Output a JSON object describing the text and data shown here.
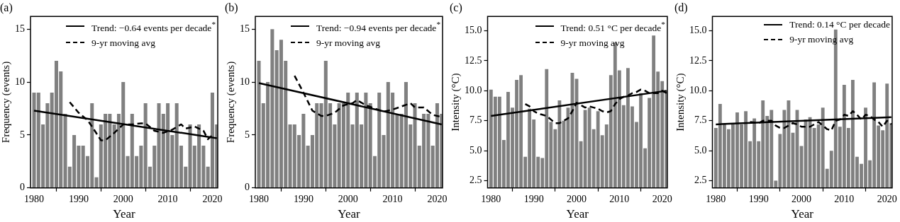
{
  "chart_data": [
    {
      "type": "bar",
      "title": "(a)",
      "xlabel": "Year",
      "ylabel": "Frequency (events)",
      "legend": "top right",
      "marker": "none",
      "xlim": [
        1979.2,
        2021.2
      ],
      "xticks": [
        1980,
        1990,
        2000,
        2010,
        2020
      ],
      "ylim": [
        0,
        16.2
      ],
      "yticks": [
        0,
        5,
        10,
        15
      ],
      "x": [
        1980,
        1981,
        1982,
        1983,
        1984,
        1985,
        1986,
        1987,
        1988,
        1989,
        1990,
        1991,
        1992,
        1993,
        1994,
        1995,
        1996,
        1997,
        1998,
        1999,
        2000,
        2001,
        2002,
        2003,
        2004,
        2005,
        2006,
        2007,
        2008,
        2009,
        2010,
        2011,
        2012,
        2013,
        2014,
        2015,
        2016,
        2017,
        2018,
        2019,
        2020,
        2021
      ],
      "series": [
        {
          "color": "#808080",
          "values": [
            9,
            9,
            6,
            8,
            9,
            12,
            11,
            7,
            2,
            5,
            4,
            4,
            3,
            8,
            1,
            6,
            7,
            7,
            6,
            7,
            10,
            3,
            7,
            3,
            4,
            8,
            2,
            4,
            8,
            7,
            8,
            5,
            8,
            4,
            2,
            6,
            4,
            6,
            4,
            2,
            9,
            6
          ]
        },
        {
          "type": "line",
          "name": "Trend: −0.64 events per decade$^{*}$",
          "color": "#000000",
          "line_style": "solid",
          "x": [
            1980,
            2021
          ],
          "values": [
            7.3,
            4.7
          ]
        },
        {
          "type": "line",
          "name": "9-yr moving avg",
          "color": "#000000",
          "line_style": "dashed",
          "x": [
            1988,
            1990,
            1992,
            1993,
            1995,
            1996,
            1998,
            2000,
            2002,
            2004,
            2005,
            2007,
            2009,
            2011,
            2013,
            2014,
            2016,
            2018,
            2019,
            2020
          ],
          "values": [
            8.1,
            7.1,
            6.4,
            5.8,
            4.5,
            4.5,
            5.2,
            6.0,
            6.0,
            6.1,
            6.1,
            5.4,
            5.2,
            5.5,
            6.0,
            5.6,
            5.8,
            5.4,
            4.6,
            5.0
          ]
        }
      ]
    },
    {
      "type": "bar",
      "title": "(b)",
      "xlabel": "Year",
      "ylabel": "Frequency (events)",
      "legend": "top right",
      "marker": "none",
      "xlim": [
        1979.2,
        2021.2
      ],
      "xticks": [
        1980,
        1990,
        2000,
        2010,
        2020
      ],
      "ylim": [
        0,
        16.2
      ],
      "yticks": [
        0,
        5,
        10,
        15
      ],
      "x": [
        1980,
        1981,
        1982,
        1983,
        1984,
        1985,
        1986,
        1987,
        1988,
        1989,
        1990,
        1991,
        1992,
        1993,
        1994,
        1995,
        1996,
        1997,
        1998,
        1999,
        2000,
        2001,
        2002,
        2003,
        2004,
        2005,
        2006,
        2007,
        2008,
        2009,
        2010,
        2011,
        2012,
        2013,
        2014,
        2015,
        2016,
        2017,
        2018,
        2019,
        2020,
        2021
      ],
      "series": [
        {
          "color": "#808080",
          "values": [
            12,
            8,
            10,
            15,
            13,
            14,
            12,
            6,
            6,
            5,
            7,
            4,
            5,
            8,
            8,
            12,
            8,
            6,
            8,
            8,
            9,
            6,
            9,
            6,
            9,
            8,
            3,
            9,
            5,
            10,
            9,
            7,
            7,
            10,
            6,
            8,
            4,
            7,
            7,
            4,
            8,
            7
          ]
        },
        {
          "type": "line",
          "name": "Trend: −0.94 events per decade$^{*}$",
          "color": "#000000",
          "line_style": "solid",
          "x": [
            1980,
            2021
          ],
          "values": [
            9.9,
            6.0
          ]
        },
        {
          "type": "line",
          "name": "9-yr moving avg",
          "color": "#000000",
          "line_style": "dashed",
          "x": [
            1988,
            1990,
            1992,
            1994,
            1995,
            1997,
            1999,
            2001,
            2002,
            2004,
            2006,
            2008,
            2010,
            2012,
            2014,
            2015,
            2017,
            2019,
            2021
          ],
          "values": [
            10.6,
            9.0,
            7.3,
            6.8,
            6.8,
            7.1,
            7.8,
            8.0,
            8.3,
            7.8,
            7.5,
            7.2,
            7.4,
            7.7,
            8.0,
            7.6,
            7.6,
            6.9,
            6.7
          ]
        }
      ]
    },
    {
      "type": "bar",
      "title": "(c)",
      "xlabel": "Year",
      "ylabel": "Intensity (°C)",
      "legend": "top right",
      "marker": "none",
      "xlim": [
        1979.2,
        2021.2
      ],
      "xticks": [
        1980,
        1990,
        2000,
        2010,
        2020
      ],
      "ylim": [
        1.9,
        16.2
      ],
      "yticks": [
        2.5,
        {
          "value": 5,
          "label": "5.0"
        },
        7.5,
        {
          "value": 10,
          "label": "10.0"
        },
        12.5,
        {
          "value": 15,
          "label": "15.0"
        }
      ],
      "x": [
        1980,
        1981,
        1982,
        1983,
        1984,
        1985,
        1986,
        1987,
        1988,
        1989,
        1990,
        1991,
        1992,
        1993,
        1994,
        1995,
        1996,
        1997,
        1998,
        1999,
        2000,
        2001,
        2002,
        2003,
        2004,
        2005,
        2006,
        2007,
        2008,
        2009,
        2010,
        2011,
        2012,
        2013,
        2014,
        2015,
        2016,
        2017,
        2018,
        2019,
        2020,
        2021
      ],
      "series": [
        {
          "color": "#808080",
          "values": [
            10.1,
            9.5,
            9.5,
            5.9,
            9.9,
            8.6,
            10.9,
            11.3,
            4.5,
            8.5,
            7.6,
            4.5,
            4.4,
            11.8,
            7.4,
            6.8,
            9.2,
            7.5,
            8.6,
            11.5,
            11.0,
            5.8,
            8.4,
            8.6,
            6.8,
            8.3,
            6.3,
            7.2,
            11.3,
            14.0,
            11.7,
            8.8,
            11.9,
            8.7,
            7.4,
            9.8,
            5.2,
            9.4,
            14.6,
            11.6,
            10.8,
            10.0
          ]
        },
        {
          "type": "line",
          "name": "Trend: 0.51 °C per decade$^{*}$",
          "color": "#000000",
          "line_style": "solid",
          "x": [
            1980,
            2021
          ],
          "values": [
            7.9,
            10.0
          ]
        },
        {
          "type": "line",
          "name": "9-yr moving avg",
          "color": "#000000",
          "line_style": "dashed",
          "x": [
            1988,
            1989,
            1990,
            1991,
            1992,
            1993,
            1994,
            1995,
            1996,
            1997,
            1998,
            1999,
            2000,
            2001,
            2002,
            2003,
            2004,
            2005,
            2006,
            2007,
            2008,
            2009,
            2010,
            2011,
            2012,
            2013,
            2014,
            2015,
            2016,
            2017,
            2018,
            2019,
            2020,
            2021
          ],
          "values": [
            8.9,
            8.7,
            8.3,
            8.1,
            8.0,
            7.9,
            7.6,
            7.3,
            7.3,
            7.5,
            7.7,
            8.3,
            9.0,
            8.8,
            8.6,
            8.7,
            8.6,
            8.5,
            8.3,
            8.2,
            8.3,
            8.9,
            9.3,
            9.5,
            9.6,
            9.8,
            9.9,
            10.1,
            10.0,
            9.8,
            9.8,
            9.8,
            10.0,
            9.8
          ]
        }
      ]
    },
    {
      "type": "bar",
      "title": "(d)",
      "xlabel": "Year",
      "ylabel": "Intensity (°C)",
      "legend": "top right",
      "marker": "none",
      "xlim": [
        1979.2,
        2021.2
      ],
      "xticks": [
        1980,
        1990,
        2000,
        2010,
        2020
      ],
      "ylim": [
        1.9,
        16.2
      ],
      "yticks": [
        2.5,
        {
          "value": 5,
          "label": "5.0"
        },
        7.5,
        {
          "value": 10,
          "label": "10.0"
        },
        12.5,
        {
          "value": 15,
          "label": "15.0"
        }
      ],
      "x": [
        1980,
        1981,
        1982,
        1983,
        1984,
        1985,
        1986,
        1987,
        1988,
        1989,
        1990,
        1991,
        1992,
        1993,
        1994,
        1995,
        1996,
        1997,
        1998,
        1999,
        2000,
        2001,
        2002,
        2003,
        2004,
        2005,
        2006,
        2007,
        2008,
        2009,
        2010,
        2011,
        2012,
        2013,
        2014,
        2015,
        2016,
        2017,
        2018,
        2019,
        2020,
        2021
      ],
      "series": [
        {
          "color": "#808080",
          "values": [
            6.9,
            8.9,
            7.2,
            6.8,
            7.2,
            8.2,
            7.2,
            8.3,
            5.8,
            7.7,
            5.8,
            9.2,
            7.9,
            8.4,
            2.5,
            6.4,
            8.4,
            9.2,
            6.5,
            8.4,
            5.4,
            7.6,
            7.8,
            6.9,
            7.2,
            8.6,
            3.5,
            5.0,
            15.1,
            7.0,
            10.5,
            6.9,
            10.9,
            4.5,
            3.9,
            8.6,
            4.2,
            10.7,
            7.1,
            6.7,
            10.6,
            7.3
          ]
        },
        {
          "type": "line",
          "name": "Trend: 0.14 °C per decade",
          "color": "#000000",
          "line_style": "solid",
          "x": [
            1980,
            2021
          ],
          "values": [
            7.2,
            7.8
          ]
        },
        {
          "type": "line",
          "name": "9-yr moving avg",
          "color": "#000000",
          "line_style": "dashed",
          "x": [
            1988,
            1990,
            1991,
            1993,
            1994,
            1995,
            1996,
            1997,
            1998,
            1999,
            2000,
            2002,
            2003,
            2004,
            2005,
            2006,
            2007,
            2008,
            2009,
            2010,
            2011,
            2012,
            2013,
            2014,
            2015,
            2016,
            2017,
            2018,
            2019,
            2020,
            2021
          ],
          "values": [
            7.4,
            7.3,
            7.5,
            7.5,
            7.1,
            6.9,
            6.9,
            7.1,
            7.3,
            7.2,
            7.0,
            7.0,
            7.2,
            7.4,
            7.1,
            6.8,
            6.7,
            7.5,
            7.6,
            8.0,
            7.9,
            8.3,
            8.0,
            7.6,
            8.0,
            7.9,
            7.6,
            7.4,
            7.0,
            7.5,
            7.2
          ]
        }
      ]
    }
  ]
}
